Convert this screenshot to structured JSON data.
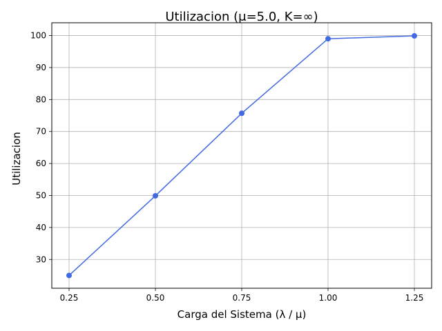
{
  "chart_data": {
    "type": "line",
    "title": "Utilizacion (μ=5.0, K=∞)",
    "xlabel": "Carga del Sistema (λ / μ)",
    "ylabel": "Utilizacion",
    "x": [
      0.25,
      0.5,
      0.75,
      1.0,
      1.25
    ],
    "series": [
      {
        "values": [
          25.0,
          49.9,
          75.7,
          99.0,
          99.9
        ],
        "color": "#4169e1",
        "marker": "circle"
      }
    ],
    "xlim": [
      0.2,
      1.3
    ],
    "ylim": [
      21.0,
      104.0
    ],
    "xticks": [
      0.25,
      0.5,
      0.75,
      1.0,
      1.25
    ],
    "xtick_labels": [
      "0.25",
      "0.50",
      "0.75",
      "1.00",
      "1.25"
    ],
    "yticks": [
      30,
      40,
      50,
      60,
      70,
      80,
      90,
      100
    ],
    "ytick_labels": [
      "30",
      "40",
      "50",
      "60",
      "70",
      "80",
      "90",
      "100"
    ],
    "grid": true,
    "legend": "none"
  }
}
